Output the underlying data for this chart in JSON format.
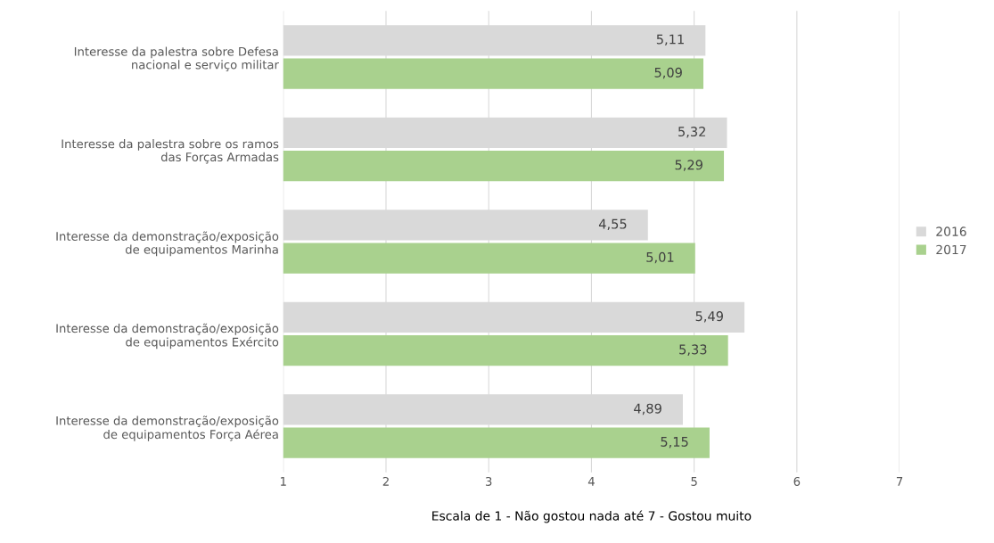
{
  "chart_data": {
    "type": "bar",
    "orientation": "horizontal",
    "xlabel": "Escala de 1 - Não gostou nada até 7 - Gostou muito",
    "categories": [
      "Interesse da palestra sobre Defesa nacional e serviço militar",
      "Interesse da palestra sobre os ramos das Forças Armadas",
      "Interesse da demonstração/exposição de equipamentos Marinha",
      "Interesse da demonstração/exposição de equipamentos Exército",
      "Interesse da demonstração/exposição de equipamentos Força Aérea"
    ],
    "series": [
      {
        "name": "2016",
        "color": "#d9d9d9",
        "values": [
          5.11,
          5.32,
          4.55,
          5.49,
          4.89
        ],
        "value_labels": [
          "5,11",
          "5,32",
          "4,55",
          "5,49",
          "4,89"
        ]
      },
      {
        "name": "2017",
        "color": "#a9d18e",
        "values": [
          5.09,
          5.29,
          5.01,
          5.33,
          5.15
        ],
        "value_labels": [
          "5,09",
          "5,29",
          "5,01",
          "5,33",
          "5,15"
        ]
      }
    ],
    "xlim": [
      1,
      7
    ],
    "xticks": [
      1,
      2,
      3,
      4,
      5,
      6,
      7
    ],
    "grid": "x",
    "legend": "right"
  }
}
